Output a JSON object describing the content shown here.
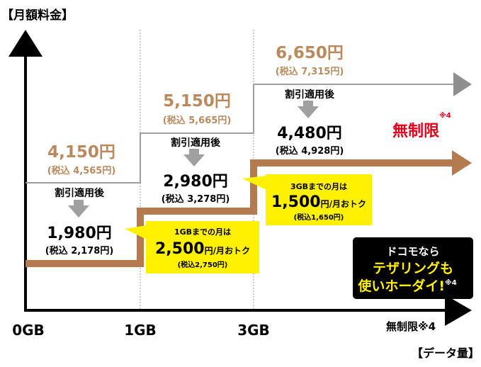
{
  "chart_data": {
    "type": "line",
    "title": "【月額料金】",
    "xlabel": "【データ量】",
    "x_ticks": [
      "0GB",
      "1GB",
      "3GB",
      "無制限※4"
    ],
    "series": [
      {
        "segments": [
          {
            "range": "0-1GB",
            "price": "4,150円",
            "tax": "(税込 4,565円)"
          },
          {
            "range": "1-3GB",
            "price": "5,150円",
            "tax": "(税込 5,665円)"
          },
          {
            "range": "3GB-無制限",
            "price": "6,650円",
            "tax": "(税込 7,315円)"
          }
        ]
      },
      {
        "label": "割引適用後",
        "segments": [
          {
            "range": "0-1GB",
            "price": "1,980円",
            "tax": "(税込 2,178円)"
          },
          {
            "range": "1-3GB",
            "price": "2,980円",
            "tax": "(税込 3,278円)"
          },
          {
            "range": "3GB-無制限",
            "price": "4,480円",
            "tax": "(税込 4,928円)"
          }
        ]
      }
    ],
    "colors": {
      "regular": "#a9a9a9",
      "discount": "#b57a4e",
      "price_text": "#b98a5e",
      "unlimited": "#e0001b",
      "callout": "#fff100"
    }
  },
  "labels": {
    "discount_label": "割引適用後",
    "unlimited_mark": "無制限",
    "unlimited_note": "※4"
  },
  "callouts": [
    {
      "line1": "1GBまでの月は",
      "big": "2,500",
      "unit": "円/月おトク",
      "tax": "(税込2,750円)"
    },
    {
      "line1": "3GBまでの月は",
      "big": "1,500",
      "unit": "円/月おトク",
      "tax": "(税込1,650円)"
    }
  ],
  "badge": {
    "line1": "ドコモなら",
    "line2": "テザリングも",
    "line3": "使いホーダイ!",
    "note": "※4"
  }
}
